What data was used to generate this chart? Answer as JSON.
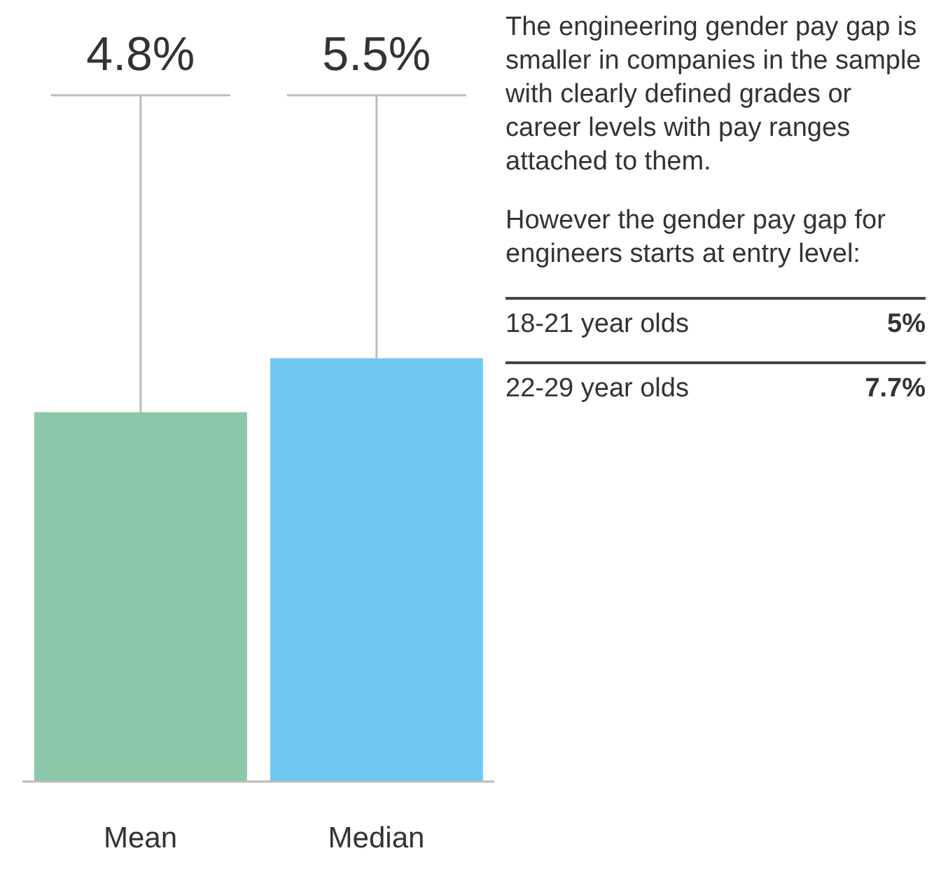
{
  "chart_data": {
    "type": "bar",
    "categories": [
      "Mean",
      "Median"
    ],
    "values": [
      4.8,
      5.5
    ],
    "colors": [
      "#8bc8a9",
      "#6fc8f2"
    ],
    "value_labels": [
      "4.8%",
      "5.5%"
    ],
    "annotations": [
      "The engineering gender pay gap is smaller in companies in the sample with clearly defined grades or career levels with pay ranges attached to them.",
      "However the gender pay gap for engineers starts at entry level:",
      "18-21 year olds",
      "5%",
      "22-29 year olds",
      "7.7%"
    ]
  }
}
